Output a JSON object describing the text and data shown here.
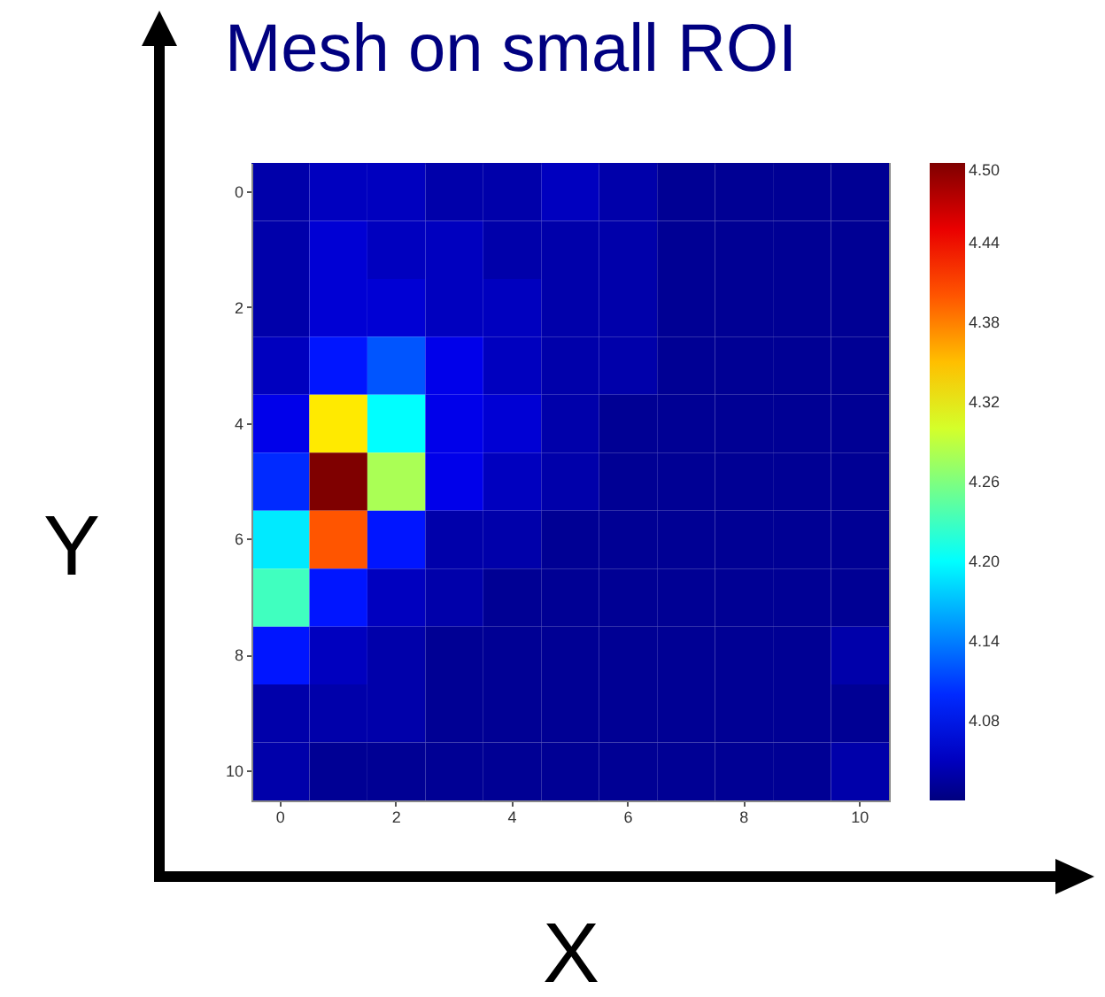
{
  "chart_data": {
    "type": "heatmap",
    "title": "Mesh  on small ROI",
    "xlabel": "X",
    "ylabel": "Y",
    "categories": [
      "0",
      null,
      "2",
      null,
      "4",
      null,
      "6",
      null,
      "8",
      null,
      "10"
    ],
    "y_categories": [
      "0",
      null,
      "2",
      null,
      "4",
      null,
      "6",
      null,
      "8",
      null,
      "10"
    ],
    "cells": [
      [
        4.04,
        4.05,
        4.05,
        4.04,
        4.04,
        4.05,
        4.04,
        4.03,
        4.03,
        4.03,
        4.03
      ],
      [
        4.04,
        4.06,
        4.05,
        4.05,
        4.04,
        4.04,
        4.04,
        4.03,
        4.03,
        4.03,
        4.03
      ],
      [
        4.04,
        4.06,
        4.06,
        4.05,
        4.05,
        4.04,
        4.04,
        4.03,
        4.03,
        4.03,
        4.03
      ],
      [
        4.05,
        4.09,
        4.12,
        4.07,
        4.05,
        4.04,
        4.04,
        4.03,
        4.03,
        4.03,
        4.03
      ],
      [
        4.07,
        4.33,
        4.2,
        4.07,
        4.06,
        4.04,
        4.03,
        4.03,
        4.03,
        4.03,
        4.03
      ],
      [
        4.1,
        4.5,
        4.28,
        4.07,
        4.05,
        4.04,
        4.03,
        4.03,
        4.03,
        4.03,
        4.03
      ],
      [
        4.19,
        4.4,
        4.09,
        4.04,
        4.04,
        4.03,
        4.03,
        4.03,
        4.03,
        4.03,
        4.03
      ],
      [
        4.23,
        4.09,
        4.05,
        4.04,
        4.03,
        4.03,
        4.03,
        4.03,
        4.03,
        4.03,
        4.03
      ],
      [
        4.09,
        4.05,
        4.04,
        4.03,
        4.03,
        4.03,
        4.03,
        4.03,
        4.03,
        4.03,
        4.04
      ],
      [
        4.04,
        4.04,
        4.04,
        4.03,
        4.03,
        4.03,
        4.03,
        4.03,
        4.03,
        4.03,
        4.03
      ],
      [
        4.04,
        4.03,
        4.03,
        4.03,
        4.03,
        4.03,
        4.03,
        4.03,
        4.03,
        4.03,
        4.04
      ]
    ],
    "clim": [
      4.02,
      4.5
    ],
    "cticks": [
      4.08,
      4.14,
      {
        "value": 4.2,
        "label": "4.20"
      },
      4.26,
      4.32,
      4.38,
      4.44,
      {
        "value": 4.5,
        "label": "4.50"
      }
    ]
  }
}
